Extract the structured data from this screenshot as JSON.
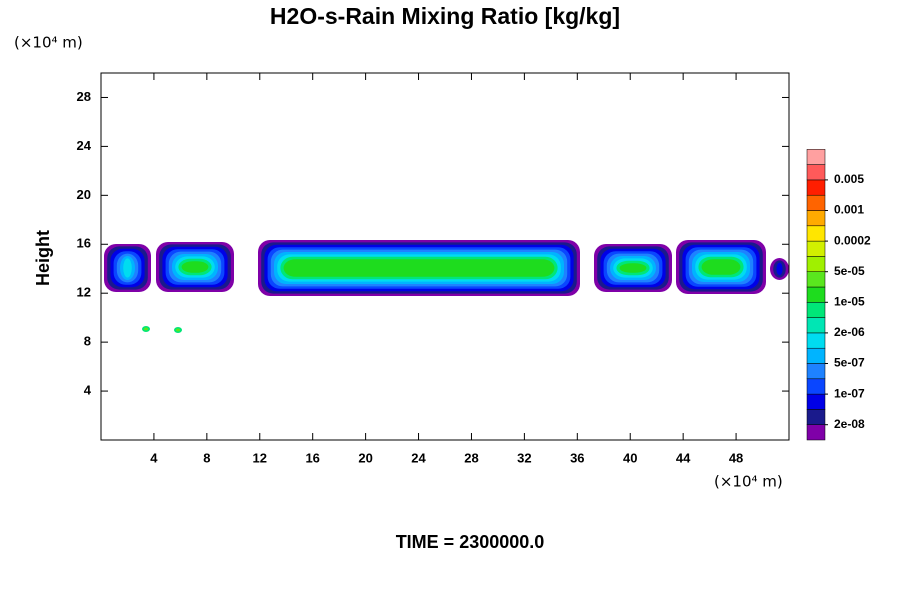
{
  "chart_data": {
    "type": "contour",
    "title": "H2O-s-Rain Mixing Ratio [kg/kg]",
    "y_unit_label": "(×10⁴ m)",
    "x_unit_label": "(×10⁴ m)",
    "ylabel": "Height",
    "footer": "TIME = 2300000.0",
    "xlim": [
      0,
      52
    ],
    "ylim": [
      0,
      30
    ],
    "xticks": [
      4,
      8,
      12,
      16,
      20,
      24,
      28,
      32,
      36,
      40,
      44,
      48
    ],
    "yticks": [
      4,
      8,
      12,
      16,
      20,
      24,
      28
    ],
    "colorbar": {
      "colors": [
        "#7f00a8",
        "#1a1a8c",
        "#0000e6",
        "#0a46ff",
        "#1e82ff",
        "#00b4ff",
        "#00dcf0",
        "#00e6b4",
        "#00e678",
        "#1edc1e",
        "#5ae61e",
        "#a0f000",
        "#d2f000",
        "#ffe600",
        "#ffaa00",
        "#ff6400",
        "#ff1e00",
        "#ff5a5a",
        "#ffa0a0"
      ],
      "levels": [
        {
          "value": 2e-08,
          "label": "2e-08"
        },
        {
          "value": 1e-07,
          "label": "1e-07"
        },
        {
          "value": 5e-07,
          "label": "5e-07"
        },
        {
          "value": 2e-06,
          "label": "2e-06"
        },
        {
          "value": 1e-05,
          "label": "1e-05"
        },
        {
          "value": 5e-05,
          "label": "5e-05"
        },
        {
          "value": 0.0002,
          "label": "0.0002"
        },
        {
          "value": 0.001,
          "label": "0.001"
        },
        {
          "value": 0.005,
          "label": "0.005"
        }
      ]
    }
  }
}
